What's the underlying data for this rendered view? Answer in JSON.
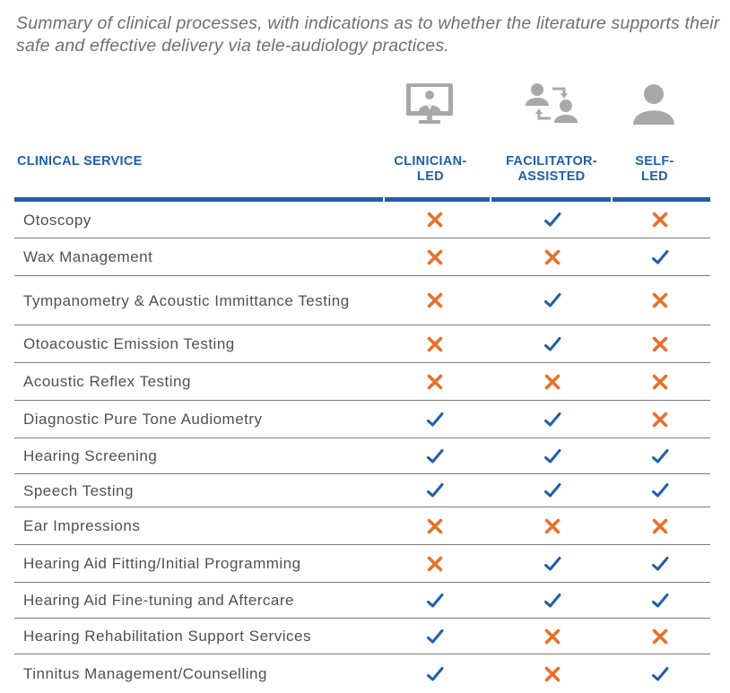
{
  "caption": "Summary of clinical processes, with indications as to whether the literature supports their safe and effective delivery via tele-audiology practices.",
  "colors": {
    "header_blue": "#1f5fa8",
    "check_blue": "#1f5fa8",
    "cross_orange": "#e8702a",
    "icon_gray": "#a8a8a8"
  },
  "header": {
    "service_label": "CLINICAL SERVICE",
    "columns": [
      {
        "line1": "CLINICIAN-",
        "line2": "LED",
        "icon": "clinician-monitor-icon"
      },
      {
        "line1": "FACILITATOR-",
        "line2": "ASSISTED",
        "icon": "facilitator-exchange-icon"
      },
      {
        "line1": "SELF-",
        "line2": "LED",
        "icon": "person-icon"
      }
    ]
  },
  "rows": [
    {
      "service": "Otoscopy",
      "clinician": "cross",
      "facilitator": "check",
      "self": "cross"
    },
    {
      "service": "Wax Management",
      "clinician": "cross",
      "facilitator": "cross",
      "self": "check"
    },
    {
      "service": "Tympanometry & Acoustic Immittance Testing",
      "clinician": "cross",
      "facilitator": "check",
      "self": "cross"
    },
    {
      "service": "Otoacoustic Emission Testing",
      "clinician": "cross",
      "facilitator": "check",
      "self": "cross"
    },
    {
      "service": "Acoustic Reflex Testing",
      "clinician": "cross",
      "facilitator": "cross",
      "self": "cross"
    },
    {
      "service": "Diagnostic Pure Tone Audiometry",
      "clinician": "check",
      "facilitator": "check",
      "self": "cross"
    },
    {
      "service": "Hearing Screening",
      "clinician": "check",
      "facilitator": "check",
      "self": "check"
    },
    {
      "service": "Speech Testing",
      "clinician": "check",
      "facilitator": "check",
      "self": "check"
    },
    {
      "service": "Ear Impressions",
      "clinician": "cross",
      "facilitator": "cross",
      "self": "cross"
    },
    {
      "service": "Hearing Aid Fitting/Initial Programming",
      "clinician": "cross",
      "facilitator": "check",
      "self": "check"
    },
    {
      "service": "Hearing Aid Fine-tuning and Aftercare",
      "clinician": "check",
      "facilitator": "check",
      "self": "check"
    },
    {
      "service": "Hearing Rehabilitation Support Services",
      "clinician": "check",
      "facilitator": "cross",
      "self": "cross"
    },
    {
      "service": "Tinnitus Management/Counselling",
      "clinician": "check",
      "facilitator": "cross",
      "self": "check"
    }
  ]
}
